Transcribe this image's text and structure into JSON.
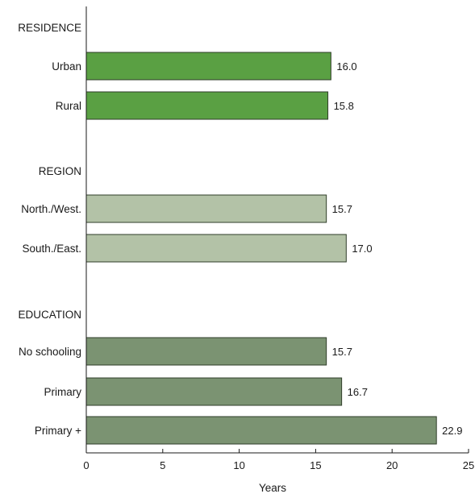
{
  "chart_data": {
    "type": "bar",
    "orientation": "horizontal",
    "xlabel": "Years",
    "xlim": [
      0,
      25
    ],
    "xticks": [
      0,
      5,
      10,
      15,
      20,
      25
    ],
    "grid": false,
    "groups": [
      {
        "label": "RESIDENCE",
        "color": "#5aa043",
        "items": [
          {
            "category": "Urban",
            "value": 16.0,
            "label": "16.0"
          },
          {
            "category": "Rural",
            "value": 15.8,
            "label": "15.8"
          }
        ]
      },
      {
        "label": "REGION",
        "color": "#b3c2a7",
        "items": [
          {
            "category": "North./West.",
            "value": 15.7,
            "label": "15.7"
          },
          {
            "category": "South./East.",
            "value": 17.0,
            "label": "17.0"
          }
        ]
      },
      {
        "label": "EDUCATION",
        "color": "#7b9372",
        "items": [
          {
            "category": "No schooling",
            "value": 15.7,
            "label": "15.7"
          },
          {
            "category": "Primary",
            "value": 16.7,
            "label": "16.7"
          },
          {
            "category": "Primary +",
            "value": 22.9,
            "label": "22.9"
          }
        ]
      }
    ]
  }
}
